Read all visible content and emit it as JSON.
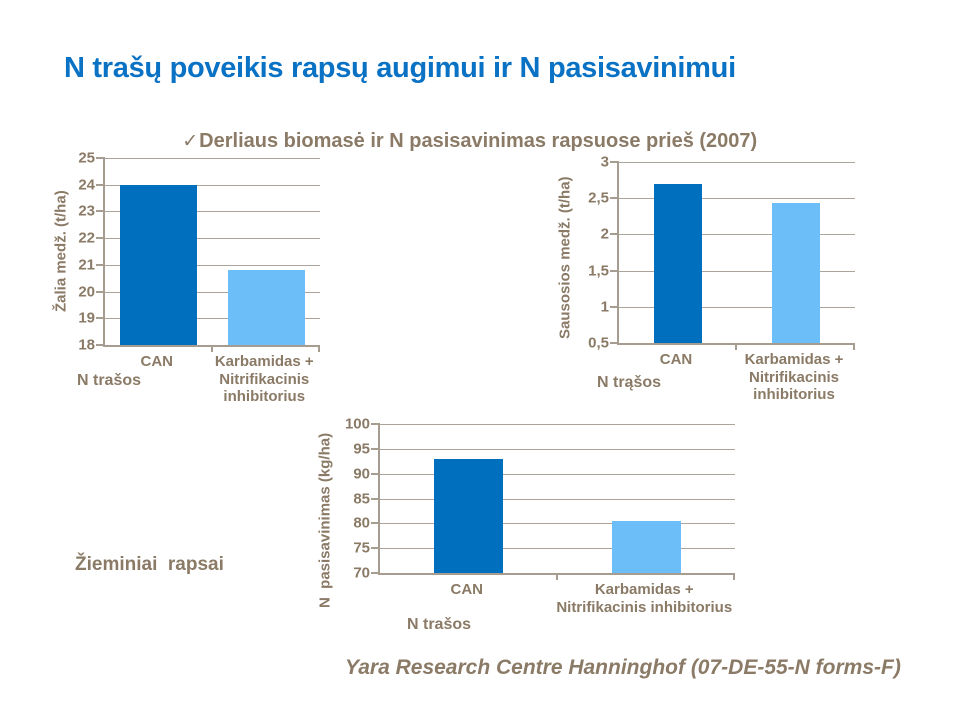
{
  "page": {
    "title": "N trašų poveikis rapsų augimui ir N pasisavinimui",
    "subtitle_check": "✓",
    "subtitle": "Derliaus biomasė ir N pasisavinimas rapsuose prieš (2007)",
    "side_label": "Žieminiai  rapsai",
    "footer": "Yara Research Centre Hanninghof (07-DE-55-N forms-F)"
  },
  "colors": {
    "title_blue": "#0A72C4",
    "text_brown": "#8A7A66",
    "axis_brown": "#A79C90",
    "gridline_gray": "#ABA49D",
    "bar_dark_blue": "#0070BE",
    "bar_light_blue": "#6CBEF8",
    "background": "#FFFFFF"
  },
  "chart_data": [
    {
      "id": "fresh-matter",
      "type": "bar",
      "title": "",
      "ylabel": "Žalia medž. (t/ha)",
      "xlabel": "N trašos",
      "categories": [
        "CAN",
        "Karbamidas + Nitrifikacinis inhibitorius"
      ],
      "categories_display": [
        "CAN",
        "Karbamidas +\nNitrifikacinis\ninhibitorius"
      ],
      "values": [
        24,
        20.8
      ],
      "ylim": [
        18,
        25
      ],
      "tick_values": [
        18,
        19,
        20,
        21,
        22,
        23,
        24,
        25
      ],
      "tick_labels": [
        "18",
        "19",
        "20",
        "21",
        "22",
        "23",
        "24",
        "25"
      ],
      "bar_colors": [
        "#0070BE",
        "#6CBEF8"
      ],
      "grid": true,
      "legend": false
    },
    {
      "id": "dry-matter",
      "type": "bar",
      "title": "",
      "ylabel": "Sausosios medž. (t/ha)",
      "xlabel": "N trąšos",
      "categories": [
        "CAN",
        "Karbamidas + Nitrifikacinis inhibitorius"
      ],
      "categories_display": [
        "CAN",
        "Karbamidas +\nNitrifikacinis\ninhibitorius"
      ],
      "values": [
        2.7,
        2.44
      ],
      "ylim": [
        0.5,
        3
      ],
      "tick_values": [
        0.5,
        1,
        1.5,
        2,
        2.5,
        3
      ],
      "tick_labels": [
        "0,5",
        "1",
        "1,5",
        "2",
        "2,5",
        "3"
      ],
      "bar_colors": [
        "#0070BE",
        "#6CBEF8"
      ],
      "grid": true,
      "legend": false
    },
    {
      "id": "n-uptake",
      "type": "bar",
      "title": "",
      "ylabel": "N  pasisavinimas (kg/ha)",
      "xlabel": "N trašos",
      "categories": [
        "CAN",
        "Karbamidas + Nitrifikacinis inhibitorius"
      ],
      "categories_display": [
        "CAN",
        "Karbamidas +\nNitrifikacinis inhibitorius"
      ],
      "values": [
        93,
        80.5
      ],
      "ylim": [
        70,
        100
      ],
      "tick_values": [
        70,
        75,
        80,
        85,
        90,
        95,
        100
      ],
      "tick_labels": [
        "70",
        "75",
        "80",
        "85",
        "90",
        "95",
        "100"
      ],
      "bar_colors": [
        "#0070BE",
        "#6CBEF8"
      ],
      "grid": true,
      "legend": false
    }
  ]
}
